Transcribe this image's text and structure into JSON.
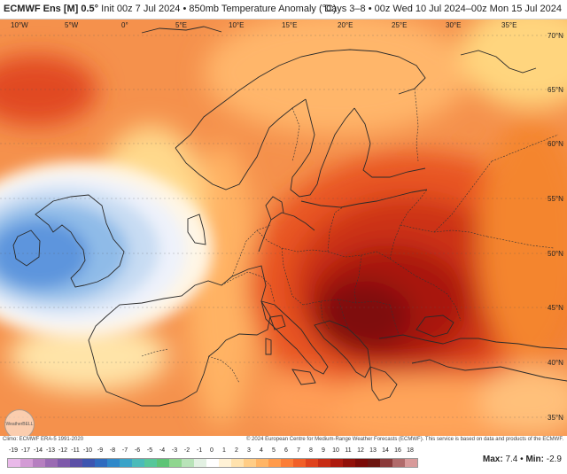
{
  "header": {
    "model": "ECMWF Ens [M] 0.5°",
    "init": "Init 00z 7 Jul 2024",
    "product": "850mb Temperature Anomaly (°C)",
    "valid": "Days 3–8 • 00z Wed 10 Jul 2024–00z Mon 15 Jul 2024"
  },
  "map": {
    "lon_labels": [
      "10°W",
      "5°W",
      "0°",
      "5°E",
      "10°E",
      "15°E",
      "20°E",
      "25°E",
      "30°E",
      "35°E"
    ],
    "lat_labels": [
      "70°N",
      "65°N",
      "60°N",
      "55°N",
      "50°N",
      "45°N",
      "40°N",
      "35°N"
    ],
    "logo": "WeatherBELL"
  },
  "credits": {
    "climo": "Climo: ECMWF ERA-5 1991-2020",
    "copyright": "© 2024 European Centre for Medium-Range Weather Forecasts (ECMWF). This service is based on data and products of the ECMWF."
  },
  "legend": {
    "ticks": [
      "-19",
      "-17",
      "-14",
      "-13",
      "-12",
      "-11",
      "-10",
      "-9",
      "-8",
      "-7",
      "-6",
      "-5",
      "-4",
      "-3",
      "-2",
      "-1",
      "0",
      "1",
      "2",
      "3",
      "4",
      "5",
      "6",
      "7",
      "8",
      "9",
      "10",
      "11",
      "12",
      "13",
      "14",
      "16",
      "18"
    ],
    "colors": [
      "#e9b9e9",
      "#d39bd5",
      "#b67fc0",
      "#9a6ab3",
      "#7e59aa",
      "#5b4fa6",
      "#3d55b0",
      "#2f6bbf",
      "#2f88c9",
      "#3aa3c8",
      "#4bbbb9",
      "#56c79a",
      "#5cc476",
      "#8fd68f",
      "#b8e3b8",
      "#e3f1e3",
      "#ffffff",
      "#fff2d6",
      "#ffe2ad",
      "#ffcd86",
      "#ffb565",
      "#ff9a4a",
      "#fb7d36",
      "#f15f27",
      "#df421c",
      "#c72c14",
      "#ad1a0e",
      "#911009",
      "#7a0a07",
      "#6b1510",
      "#8a3a3a",
      "#b06a6a",
      "#d89a9a"
    ],
    "max_label": "Max:",
    "max_value": "7.4",
    "min_label": "Min:",
    "min_value": "-2.9"
  }
}
